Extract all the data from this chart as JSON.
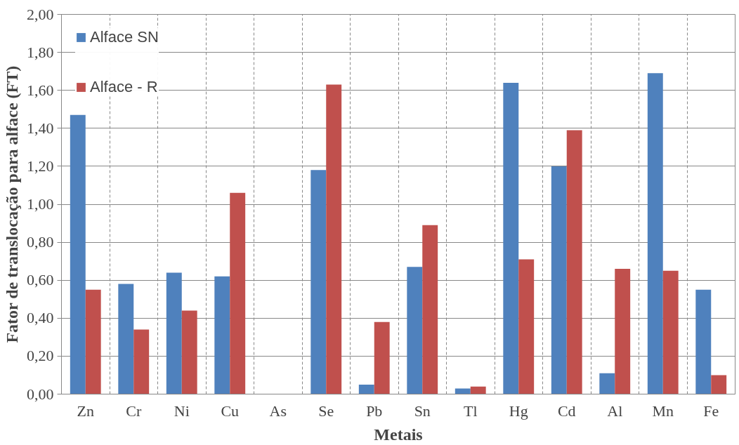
{
  "chart_data": {
    "type": "bar",
    "xlabel": "Metais",
    "ylabel": "Fator de translocação para alface (FT)",
    "categories": [
      "Zn",
      "Cr",
      "Ni",
      "Cu",
      "As",
      "Se",
      "Pb",
      "Sn",
      "Tl",
      "Hg",
      "Cd",
      "Al",
      "Mn",
      "Fe"
    ],
    "series": [
      {
        "name": "Alface SN",
        "color": "#4f81bd",
        "values": [
          1.47,
          0.58,
          0.64,
          0.62,
          0,
          1.18,
          0.05,
          0.67,
          0.03,
          1.64,
          1.2,
          0.11,
          1.69,
          0.55
        ]
      },
      {
        "name": "Alface - R",
        "color": "#c0504d",
        "values": [
          0.55,
          0.34,
          0.44,
          1.06,
          0,
          1.63,
          0.38,
          0.89,
          0.04,
          0.71,
          1.39,
          0.66,
          0.65,
          0.1
        ]
      }
    ],
    "ylim": [
      0,
      2
    ],
    "yticks": [
      {
        "value": 0,
        "label": "0,00"
      },
      {
        "value": 0.2,
        "label": "0,20"
      },
      {
        "value": 0.4,
        "label": "0,40"
      },
      {
        "value": 0.6,
        "label": "0,60"
      },
      {
        "value": 0.8,
        "label": "0,80"
      },
      {
        "value": 1.0,
        "label": "1,00"
      },
      {
        "value": 1.2,
        "label": "1,20"
      },
      {
        "value": 1.4,
        "label": "1,40"
      },
      {
        "value": 1.6,
        "label": "1,60"
      },
      {
        "value": 1.8,
        "label": "1,80"
      },
      {
        "value": 2.0,
        "label": "2,00"
      }
    ],
    "grid": true,
    "legend": "top left"
  }
}
